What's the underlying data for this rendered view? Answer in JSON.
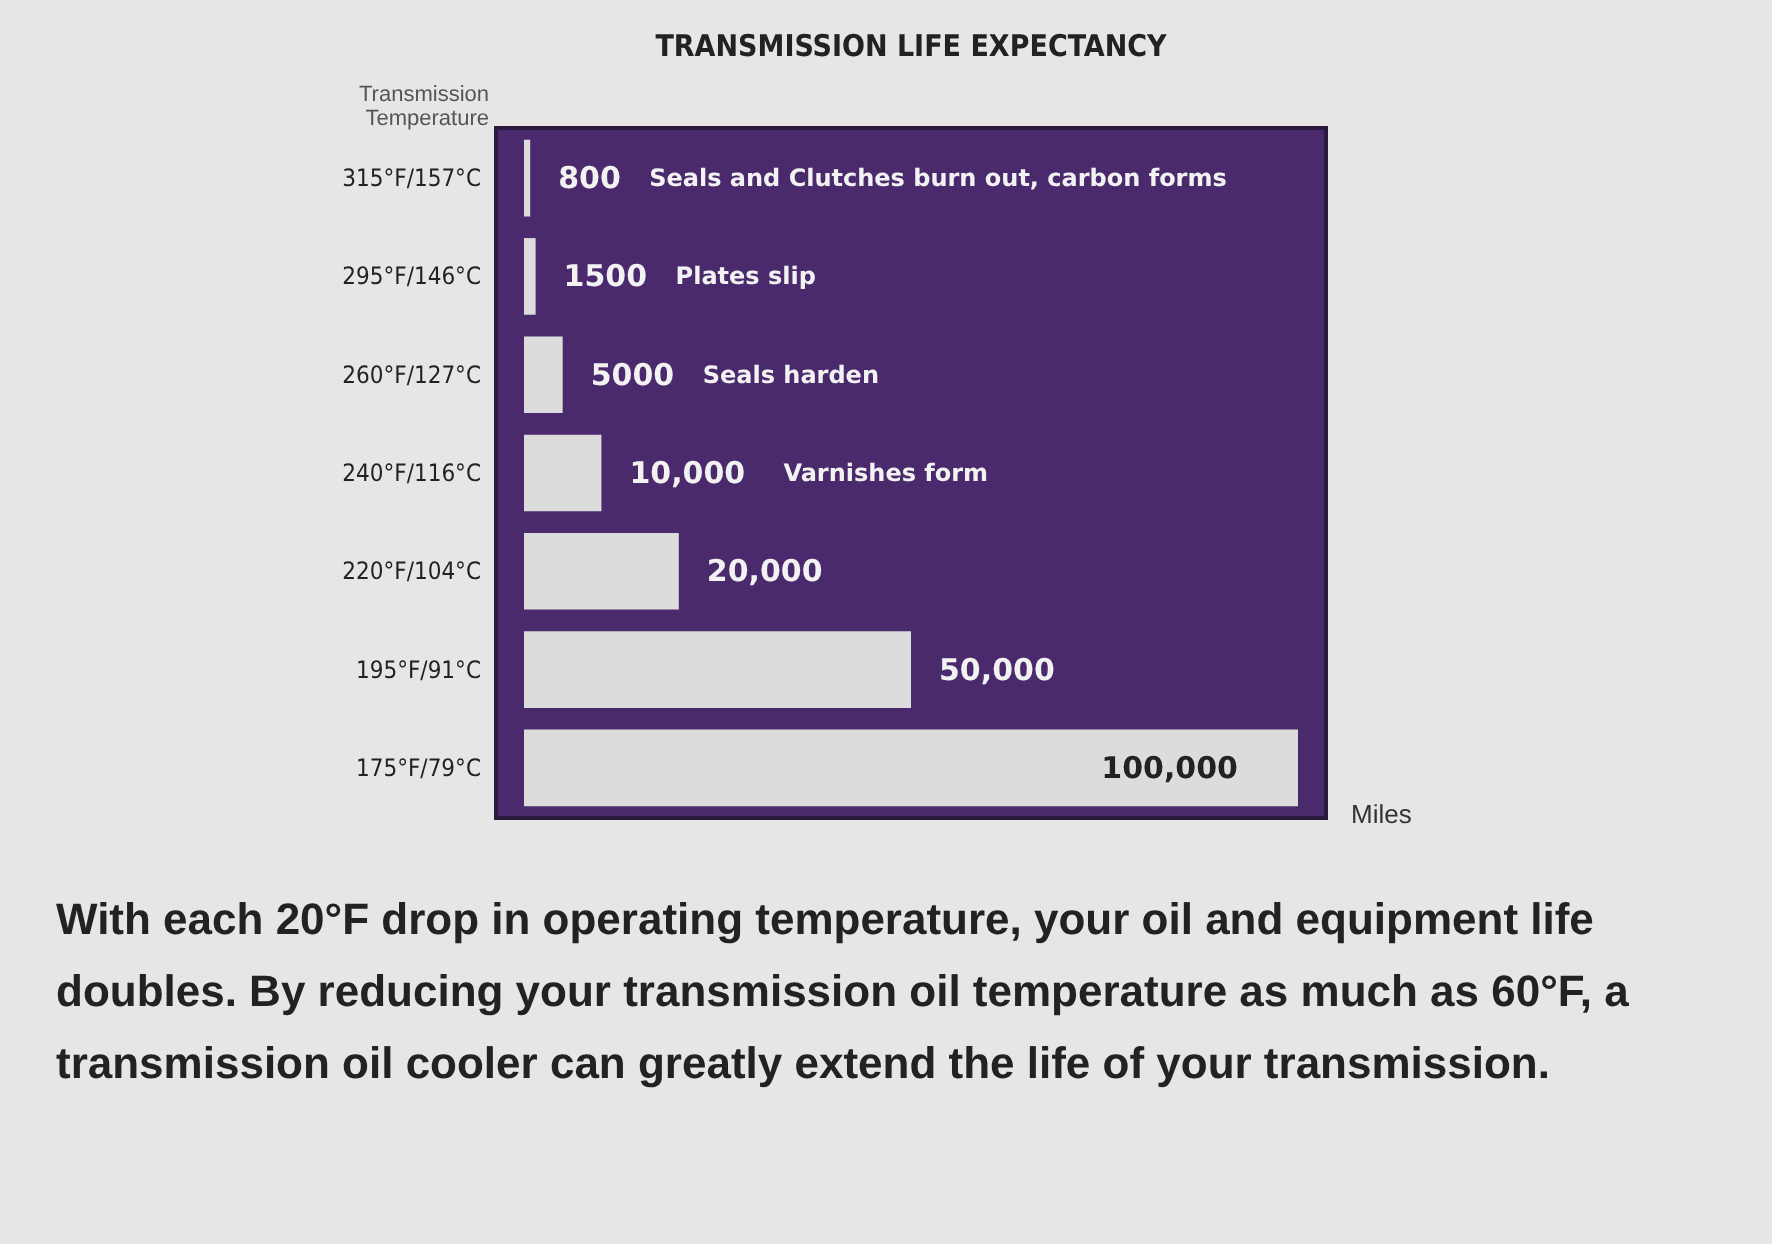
{
  "chart_data": {
    "type": "bar",
    "orientation": "horizontal",
    "title": "TRANSMISSION LIFE EXPECTANCY",
    "ylabel": "Transmission Temperature",
    "xlabel": "Miles",
    "categories": [
      "315°F/157°C",
      "295°F/146°C",
      "260°F/127°C",
      "240°F/116°C",
      "220°F/104°C",
      "195°F/91°C",
      "175°F/79°C"
    ],
    "values": [
      800,
      1500,
      5000,
      10000,
      20000,
      50000,
      100000
    ],
    "value_labels": [
      "800",
      "1500",
      "5000",
      "10,000",
      "20,000",
      "50,000",
      "100,000"
    ],
    "color": "#dcdcdc",
    "annotations": [
      "Seals and Clutches burn out, carbon forms",
      "Plates slip",
      "Seals harden",
      "Varnishes form",
      "With each 20°F drop in operating temperature, your oil and equipment life doubles. By reducing your transmission oil temperature as much as 60°F, a transmission oil cooler can greatly extend the life of your transmission."
    ],
    "grid": false
  }
}
